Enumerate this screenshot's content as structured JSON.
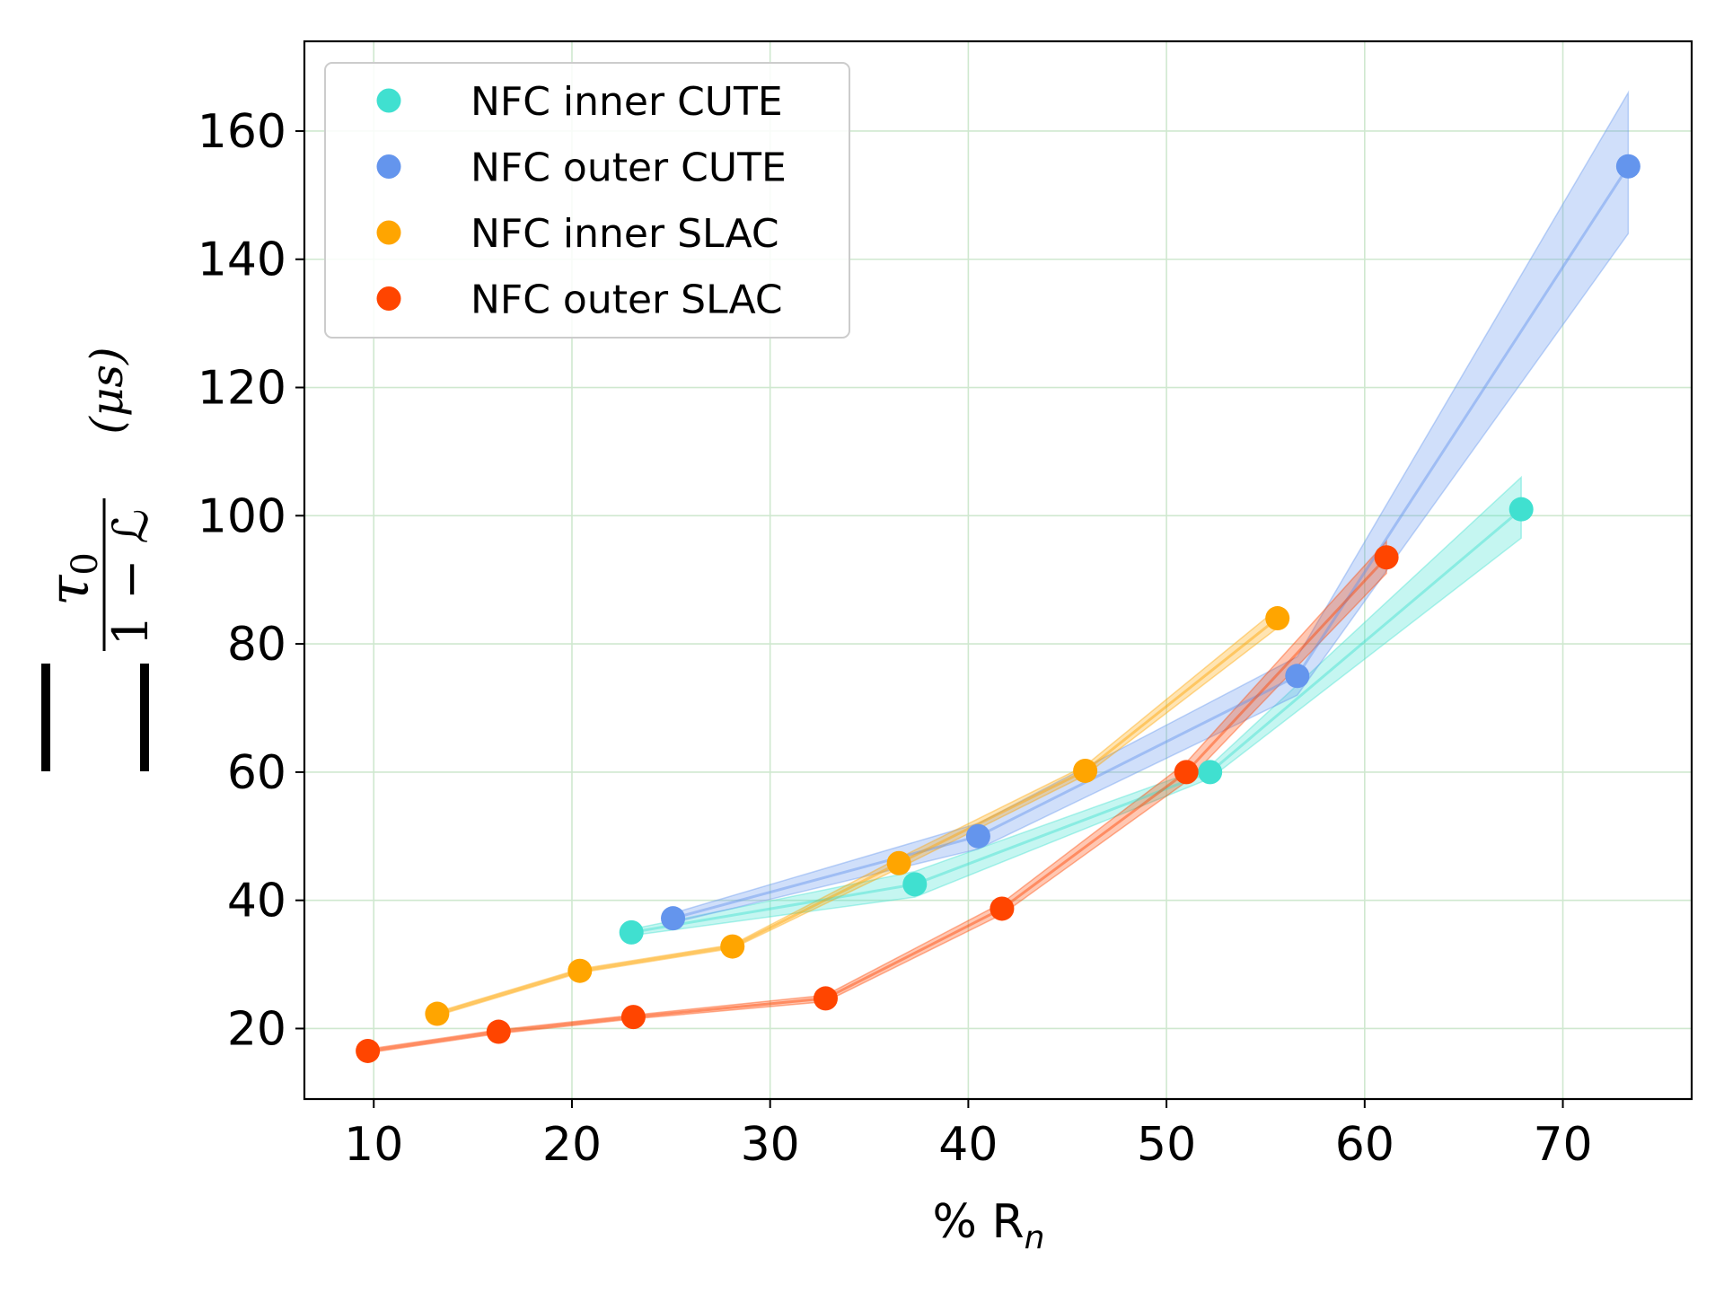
{
  "chart_data": {
    "type": "scatter",
    "title": "",
    "xlabel": "% R",
    "xlabel_sub": "n",
    "ylabel": {
      "numerator": "τ",
      "numerator_sub": "0",
      "denominator": "1 − ℒ",
      "unit": "(μs)"
    },
    "xlim": [
      6.5,
      76.5
    ],
    "ylim": [
      9,
      174
    ],
    "xticks": [
      10,
      20,
      30,
      40,
      50,
      60,
      70
    ],
    "yticks": [
      20,
      40,
      60,
      80,
      100,
      120,
      140,
      160
    ],
    "grid": true,
    "legend_position": "top-left",
    "series": [
      {
        "name": "NFC inner CUTE",
        "color": "#40E0D0",
        "x": [
          23.0,
          37.3,
          52.2,
          67.9
        ],
        "y": [
          35.0,
          42.5,
          60.0,
          101.0
        ],
        "band_lo": [
          34.5,
          40.5,
          59.0,
          96.5
        ],
        "band_hi": [
          35.5,
          44.5,
          61.0,
          106.0
        ]
      },
      {
        "name": "NFC outer CUTE",
        "color": "#6495ED",
        "x": [
          25.1,
          40.5,
          56.6,
          73.3
        ],
        "y": [
          37.2,
          50.0,
          75.0,
          154.5
        ],
        "band_lo": [
          36.5,
          48.0,
          72.0,
          144.0
        ],
        "band_hi": [
          38.0,
          52.0,
          78.0,
          166.0
        ]
      },
      {
        "name": "NFC inner SLAC",
        "color": "#FFA500",
        "x": [
          13.2,
          20.4,
          28.1,
          36.5,
          45.9,
          55.6
        ],
        "y": [
          22.3,
          29.0,
          32.8,
          45.8,
          60.2,
          84.0
        ],
        "band_lo": [
          22.0,
          28.7,
          32.5,
          45.0,
          59.5,
          82.5
        ],
        "band_hi": [
          22.6,
          29.3,
          33.1,
          46.6,
          61.0,
          85.5
        ]
      },
      {
        "name": "NFC outer SLAC",
        "color": "#FF4500",
        "x": [
          9.7,
          16.3,
          23.1,
          32.8,
          41.7,
          51.0,
          61.1
        ],
        "y": [
          16.5,
          19.5,
          21.8,
          24.7,
          38.7,
          60.0,
          93.5
        ],
        "band_lo": [
          16.2,
          19.2,
          21.5,
          24.2,
          37.8,
          58.5,
          91.0
        ],
        "band_hi": [
          16.8,
          19.8,
          22.1,
          25.2,
          39.6,
          61.5,
          96.0
        ]
      }
    ]
  }
}
